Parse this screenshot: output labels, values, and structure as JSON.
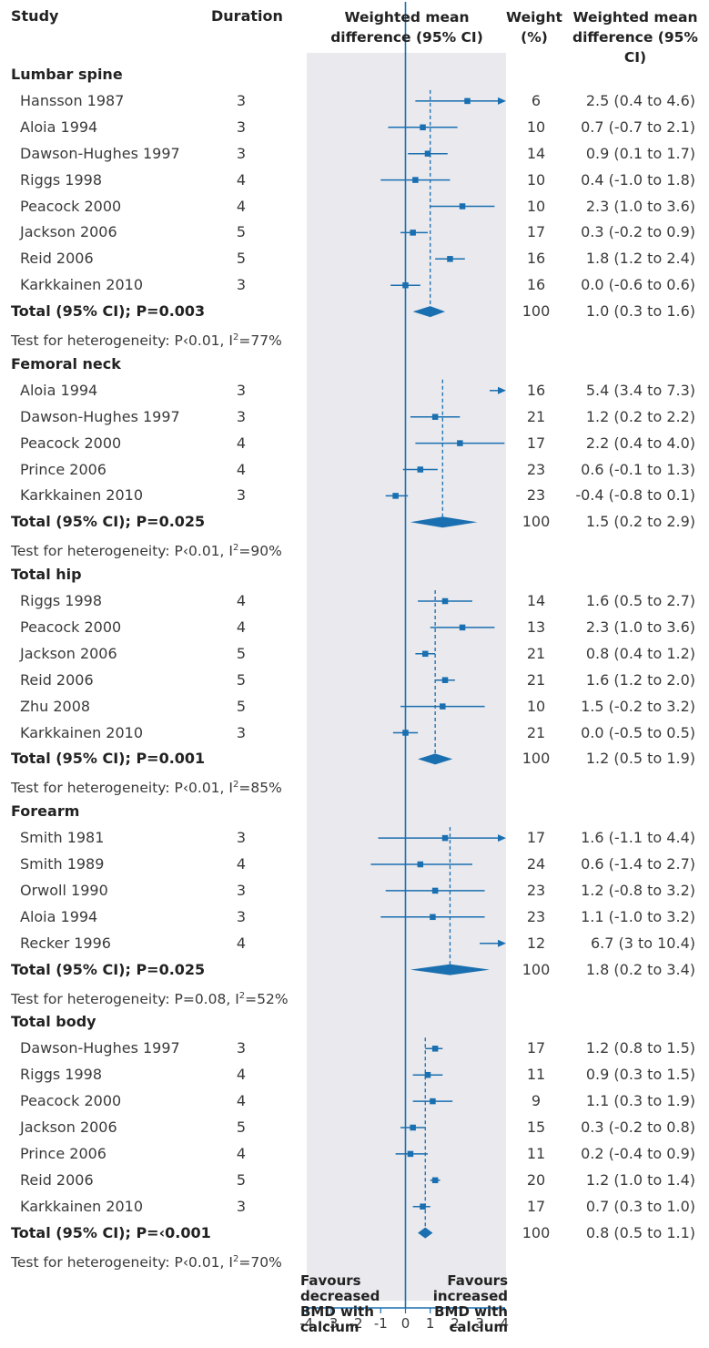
{
  "header": {
    "study": "Study",
    "duration": "Duration",
    "wmd_plot": [
      "Weighted mean",
      "difference (95% CI)"
    ],
    "weight": [
      "Weight",
      "(%)"
    ],
    "wmd_text": [
      "Weighted mean",
      "difference (95% CI)"
    ]
  },
  "footer": {
    "favours_left": [
      "Favours",
      "decreased",
      "BMD with",
      "calcium"
    ],
    "favours_right": [
      "Favours",
      "increased",
      "BMD with",
      "calcium"
    ]
  },
  "colors": {
    "plot_bg": "#e9e9ee",
    "mark": "#1a6fb0",
    "text": "#3a3a3a"
  },
  "chart_data": {
    "type": "forest",
    "title": "",
    "xlabel": "",
    "ylabel": "",
    "xlim": [
      -4,
      4
    ],
    "x_ticks": [
      "-4",
      "-3",
      "-2",
      "-1",
      "0",
      "1",
      "2",
      "3",
      "4"
    ],
    "null_line": 0,
    "groups": [
      {
        "name": "Lumbar spine",
        "studies": [
          {
            "study": "Hansson 1987",
            "duration": "3",
            "weight": "6",
            "ci_text": "2.5 (0.4 to 4.6)",
            "est": 2.5,
            "lo": 0.4,
            "hi": 4.6
          },
          {
            "study": "Aloia 1994",
            "duration": "3",
            "weight": "10",
            "ci_text": "0.7 (-0.7 to 2.1)",
            "est": 0.7,
            "lo": -0.7,
            "hi": 2.1
          },
          {
            "study": "Dawson-Hughes 1997",
            "duration": "3",
            "weight": "14",
            "ci_text": "0.9 (0.1 to 1.7)",
            "est": 0.9,
            "lo": 0.1,
            "hi": 1.7
          },
          {
            "study": "Riggs 1998",
            "duration": "4",
            "weight": "10",
            "ci_text": "0.4 (-1.0 to 1.8)",
            "est": 0.4,
            "lo": -1.0,
            "hi": 1.8
          },
          {
            "study": "Peacock 2000",
            "duration": "4",
            "weight": "10",
            "ci_text": "2.3 (1.0 to 3.6)",
            "est": 2.3,
            "lo": 1.0,
            "hi": 3.6
          },
          {
            "study": "Jackson 2006",
            "duration": "5",
            "weight": "17",
            "ci_text": "0.3 (-0.2 to 0.9)",
            "est": 0.3,
            "lo": -0.2,
            "hi": 0.9
          },
          {
            "study": "Reid 2006",
            "duration": "5",
            "weight": "16",
            "ci_text": "1.8 (1.2 to 2.4)",
            "est": 1.8,
            "lo": 1.2,
            "hi": 2.4
          },
          {
            "study": "Karkkainen 2010",
            "duration": "3",
            "weight": "16",
            "ci_text": "0.0 (-0.6 to 0.6)",
            "est": 0.0,
            "lo": -0.6,
            "hi": 0.6
          }
        ],
        "total": {
          "label": "Total (95% CI); P=0.003",
          "weight": "100",
          "ci_text": "1.0 (0.3 to 1.6)",
          "est": 1.0,
          "lo": 0.3,
          "hi": 1.6
        },
        "heterogeneity": {
          "prefix": "Test for heterogeneity: P‹0.01, I",
          "sup": "2",
          "suffix": "=77%"
        }
      },
      {
        "name": "Femoral neck",
        "studies": [
          {
            "study": "Aloia 1994",
            "duration": "3",
            "weight": "16",
            "ci_text": "5.4 (3.4 to 7.3)",
            "est": 5.4,
            "lo": 3.4,
            "hi": 7.3
          },
          {
            "study": "Dawson-Hughes 1997",
            "duration": "3",
            "weight": "21",
            "ci_text": "1.2 (0.2 to 2.2)",
            "est": 1.2,
            "lo": 0.2,
            "hi": 2.2
          },
          {
            "study": "Peacock 2000",
            "duration": "4",
            "weight": "17",
            "ci_text": "2.2 (0.4 to 4.0)",
            "est": 2.2,
            "lo": 0.4,
            "hi": 4.0
          },
          {
            "study": "Prince 2006",
            "duration": "4",
            "weight": "23",
            "ci_text": "0.6 (-0.1 to 1.3)",
            "est": 0.6,
            "lo": -0.1,
            "hi": 1.3
          },
          {
            "study": "Karkkainen 2010",
            "duration": "3",
            "weight": "23",
            "ci_text": "-0.4 (-0.8 to 0.1)",
            "est": -0.4,
            "lo": -0.8,
            "hi": 0.1
          }
        ],
        "total": {
          "label": "Total (95% CI); P=0.025",
          "weight": "100",
          "ci_text": "1.5 (0.2 to 2.9)",
          "est": 1.5,
          "lo": 0.2,
          "hi": 2.9
        },
        "heterogeneity": {
          "prefix": "Test for heterogeneity: P‹0.01, I",
          "sup": "2",
          "suffix": "=90%"
        }
      },
      {
        "name": "Total hip",
        "studies": [
          {
            "study": "Riggs 1998",
            "duration": "4",
            "weight": "14",
            "ci_text": "1.6 (0.5 to 2.7)",
            "est": 1.6,
            "lo": 0.5,
            "hi": 2.7
          },
          {
            "study": "Peacock 2000",
            "duration": "4",
            "weight": "13",
            "ci_text": "2.3 (1.0 to 3.6)",
            "est": 2.3,
            "lo": 1.0,
            "hi": 3.6
          },
          {
            "study": "Jackson 2006",
            "duration": "5",
            "weight": "21",
            "ci_text": "0.8 (0.4 to 1.2)",
            "est": 0.8,
            "lo": 0.4,
            "hi": 1.2
          },
          {
            "study": "Reid 2006",
            "duration": "5",
            "weight": "21",
            "ci_text": "1.6 (1.2 to 2.0)",
            "est": 1.6,
            "lo": 1.2,
            "hi": 2.0
          },
          {
            "study": "Zhu 2008",
            "duration": "5",
            "weight": "10",
            "ci_text": "1.5 (-0.2 to 3.2)",
            "est": 1.5,
            "lo": -0.2,
            "hi": 3.2
          },
          {
            "study": "Karkkainen 2010",
            "duration": "3",
            "weight": "21",
            "ci_text": "0.0 (-0.5 to 0.5)",
            "est": 0.0,
            "lo": -0.5,
            "hi": 0.5
          }
        ],
        "total": {
          "label": "Total (95% CI); P=0.001",
          "weight": "100",
          "ci_text": "1.2 (0.5 to 1.9)",
          "est": 1.2,
          "lo": 0.5,
          "hi": 1.9
        },
        "heterogeneity": {
          "prefix": "Test for heterogeneity: P‹0.01, I",
          "sup": "2",
          "suffix": "=85%"
        }
      },
      {
        "name": "Forearm",
        "studies": [
          {
            "study": "Smith 1981",
            "duration": "3",
            "weight": "17",
            "ci_text": "1.6 (-1.1 to 4.4)",
            "est": 1.6,
            "lo": -1.1,
            "hi": 4.4
          },
          {
            "study": "Smith 1989",
            "duration": "4",
            "weight": "24",
            "ci_text": "0.6 (-1.4 to 2.7)",
            "est": 0.6,
            "lo": -1.4,
            "hi": 2.7
          },
          {
            "study": "Orwoll 1990",
            "duration": "3",
            "weight": "23",
            "ci_text": "1.2 (-0.8 to 3.2)",
            "est": 1.2,
            "lo": -0.8,
            "hi": 3.2
          },
          {
            "study": "Aloia 1994",
            "duration": "3",
            "weight": "23",
            "ci_text": "1.1 (-1.0 to 3.2)",
            "est": 1.1,
            "lo": -1.0,
            "hi": 3.2
          },
          {
            "study": "Recker 1996",
            "duration": "4",
            "weight": "12",
            "ci_text": "6.7 (3 to 10.4)",
            "est": 6.7,
            "lo": 3.0,
            "hi": 10.4
          }
        ],
        "total": {
          "label": "Total (95% CI); P=0.025",
          "weight": "100",
          "ci_text": "1.8 (0.2 to 3.4)",
          "est": 1.8,
          "lo": 0.2,
          "hi": 3.4
        },
        "heterogeneity": {
          "prefix": "Test for heterogeneity: P=0.08, I",
          "sup": "2",
          "suffix": "=52%"
        }
      },
      {
        "name": "Total body",
        "studies": [
          {
            "study": "Dawson-Hughes 1997",
            "duration": "3",
            "weight": "17",
            "ci_text": "1.2 (0.8 to 1.5)",
            "est": 1.2,
            "lo": 0.8,
            "hi": 1.5
          },
          {
            "study": "Riggs 1998",
            "duration": "4",
            "weight": "11",
            "ci_text": "0.9 (0.3 to 1.5)",
            "est": 0.9,
            "lo": 0.3,
            "hi": 1.5
          },
          {
            "study": "Peacock 2000",
            "duration": "4",
            "weight": "9",
            "ci_text": "1.1 (0.3 to 1.9)",
            "est": 1.1,
            "lo": 0.3,
            "hi": 1.9
          },
          {
            "study": "Jackson 2006",
            "duration": "5",
            "weight": "15",
            "ci_text": "0.3 (-0.2 to 0.8)",
            "est": 0.3,
            "lo": -0.2,
            "hi": 0.8
          },
          {
            "study": "Prince 2006",
            "duration": "4",
            "weight": "11",
            "ci_text": "0.2 (-0.4 to 0.9)",
            "est": 0.2,
            "lo": -0.4,
            "hi": 0.9
          },
          {
            "study": "Reid 2006",
            "duration": "5",
            "weight": "20",
            "ci_text": "1.2 (1.0 to 1.4)",
            "est": 1.2,
            "lo": 1.0,
            "hi": 1.4
          },
          {
            "study": "Karkkainen 2010",
            "duration": "3",
            "weight": "17",
            "ci_text": "0.7 (0.3 to 1.0)",
            "est": 0.7,
            "lo": 0.3,
            "hi": 1.0
          }
        ],
        "total": {
          "label": "Total (95% CI); P=‹0.001",
          "weight": "100",
          "ci_text": "0.8 (0.5 to 1.1)",
          "est": 0.8,
          "lo": 0.5,
          "hi": 1.1
        },
        "heterogeneity": {
          "prefix": "Test for heterogeneity: P‹0.01, I",
          "sup": "2",
          "suffix": "=70%"
        }
      }
    ]
  }
}
